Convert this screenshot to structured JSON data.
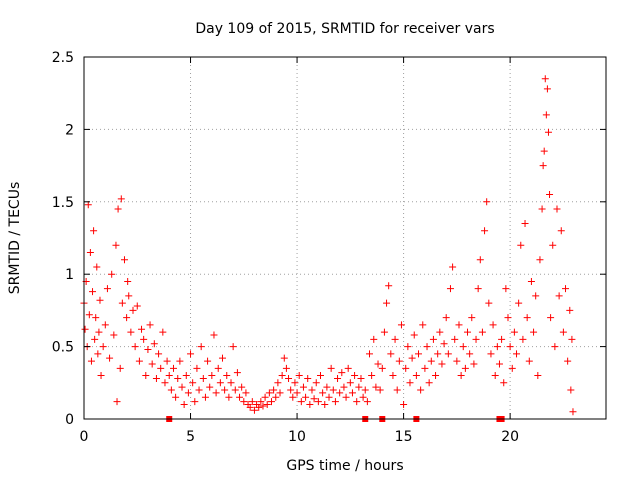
{
  "chart_data": {
    "type": "scatter",
    "title": "Day 109 of 2015, SRMTID for receiver vars",
    "xlabel": "GPS time / hours",
    "ylabel": "SRMTID / TECUs",
    "xlim": [
      0,
      24.5
    ],
    "ylim": [
      0,
      2.5
    ],
    "grid": true,
    "x_ticks": [
      0,
      5,
      10,
      15,
      20
    ],
    "x_tick_labels": [
      "0",
      "5",
      "10",
      "15",
      "20"
    ],
    "y_ticks": [
      0,
      0.5,
      1,
      1.5,
      2,
      2.5
    ],
    "y_tick_labels": [
      "0",
      "0.5",
      "1",
      "1.5",
      "2",
      "2.5"
    ],
    "marker": "plus",
    "color": "#ff0000",
    "series": [
      {
        "name": "SRMTID",
        "points": [
          [
            0.0,
            0.8
          ],
          [
            0.05,
            0.62
          ],
          [
            0.1,
            0.95
          ],
          [
            0.15,
            0.5
          ],
          [
            0.2,
            1.48
          ],
          [
            0.25,
            0.72
          ],
          [
            0.3,
            1.15
          ],
          [
            0.35,
            0.4
          ],
          [
            0.4,
            0.88
          ],
          [
            0.45,
            1.3
          ],
          [
            0.5,
            0.55
          ],
          [
            0.55,
            0.7
          ],
          [
            0.6,
            1.05
          ],
          [
            0.65,
            0.45
          ],
          [
            0.7,
            0.6
          ],
          [
            0.75,
            0.82
          ],
          [
            0.8,
            0.3
          ],
          [
            0.9,
            0.5
          ],
          [
            1.0,
            0.65
          ],
          [
            1.1,
            0.9
          ],
          [
            1.2,
            0.42
          ],
          [
            1.3,
            1.0
          ],
          [
            1.4,
            0.58
          ],
          [
            1.5,
            1.2
          ],
          [
            1.55,
            0.12
          ],
          [
            1.6,
            1.45
          ],
          [
            1.7,
            0.35
          ],
          [
            1.75,
            1.52
          ],
          [
            1.8,
            0.8
          ],
          [
            1.9,
            1.1
          ],
          [
            2.0,
            0.7
          ],
          [
            2.05,
            0.95
          ],
          [
            2.1,
            0.85
          ],
          [
            2.2,
            0.6
          ],
          [
            2.3,
            0.75
          ],
          [
            2.4,
            0.5
          ],
          [
            2.5,
            0.78
          ],
          [
            2.6,
            0.4
          ],
          [
            2.7,
            0.62
          ],
          [
            2.8,
            0.55
          ],
          [
            2.9,
            0.3
          ],
          [
            3.0,
            0.48
          ],
          [
            3.1,
            0.65
          ],
          [
            3.2,
            0.38
          ],
          [
            3.3,
            0.52
          ],
          [
            3.4,
            0.28
          ],
          [
            3.5,
            0.45
          ],
          [
            3.6,
            0.35
          ],
          [
            3.7,
            0.6
          ],
          [
            3.8,
            0.25
          ],
          [
            3.9,
            0.4
          ],
          [
            4.0,
            0.3
          ],
          [
            4.1,
            0.2
          ],
          [
            4.2,
            0.35
          ],
          [
            4.3,
            0.15
          ],
          [
            4.4,
            0.28
          ],
          [
            4.5,
            0.4
          ],
          [
            4.6,
            0.22
          ],
          [
            4.7,
            0.1
          ],
          [
            4.8,
            0.3
          ],
          [
            4.9,
            0.18
          ],
          [
            5.0,
            0.45
          ],
          [
            5.1,
            0.25
          ],
          [
            5.2,
            0.12
          ],
          [
            5.3,
            0.35
          ],
          [
            5.4,
            0.2
          ],
          [
            5.5,
            0.5
          ],
          [
            5.6,
            0.28
          ],
          [
            5.7,
            0.15
          ],
          [
            5.8,
            0.4
          ],
          [
            5.9,
            0.22
          ],
          [
            6.0,
            0.3
          ],
          [
            6.1,
            0.58
          ],
          [
            6.2,
            0.18
          ],
          [
            6.3,
            0.35
          ],
          [
            6.4,
            0.25
          ],
          [
            6.5,
            0.42
          ],
          [
            6.6,
            0.2
          ],
          [
            6.7,
            0.3
          ],
          [
            6.8,
            0.15
          ],
          [
            6.9,
            0.25
          ],
          [
            7.0,
            0.5
          ],
          [
            7.1,
            0.2
          ],
          [
            7.2,
            0.32
          ],
          [
            7.3,
            0.15
          ],
          [
            7.4,
            0.22
          ],
          [
            7.5,
            0.12
          ],
          [
            7.6,
            0.18
          ],
          [
            7.7,
            0.1
          ],
          [
            7.8,
            0.08
          ],
          [
            7.9,
            0.12
          ],
          [
            8.0,
            0.06
          ],
          [
            8.1,
            0.1
          ],
          [
            8.2,
            0.08
          ],
          [
            8.3,
            0.12
          ],
          [
            8.4,
            0.09
          ],
          [
            8.5,
            0.15
          ],
          [
            8.6,
            0.1
          ],
          [
            8.7,
            0.18
          ],
          [
            8.8,
            0.12
          ],
          [
            8.9,
            0.2
          ],
          [
            9.0,
            0.15
          ],
          [
            9.1,
            0.25
          ],
          [
            9.2,
            0.18
          ],
          [
            9.3,
            0.3
          ],
          [
            9.4,
            0.42
          ],
          [
            9.5,
            0.35
          ],
          [
            9.6,
            0.28
          ],
          [
            9.7,
            0.2
          ],
          [
            9.8,
            0.15
          ],
          [
            9.9,
            0.25
          ],
          [
            10.0,
            0.18
          ],
          [
            10.1,
            0.3
          ],
          [
            10.2,
            0.12
          ],
          [
            10.3,
            0.22
          ],
          [
            10.4,
            0.15
          ],
          [
            10.5,
            0.28
          ],
          [
            10.6,
            0.1
          ],
          [
            10.7,
            0.2
          ],
          [
            10.8,
            0.14
          ],
          [
            10.9,
            0.25
          ],
          [
            11.0,
            0.12
          ],
          [
            11.1,
            0.3
          ],
          [
            11.2,
            0.18
          ],
          [
            11.3,
            0.1
          ],
          [
            11.4,
            0.22
          ],
          [
            11.5,
            0.15
          ],
          [
            11.6,
            0.35
          ],
          [
            11.7,
            0.2
          ],
          [
            11.8,
            0.12
          ],
          [
            11.9,
            0.28
          ],
          [
            12.0,
            0.18
          ],
          [
            12.1,
            0.32
          ],
          [
            12.2,
            0.22
          ],
          [
            12.3,
            0.15
          ],
          [
            12.4,
            0.35
          ],
          [
            12.5,
            0.25
          ],
          [
            12.6,
            0.18
          ],
          [
            12.7,
            0.3
          ],
          [
            12.8,
            0.12
          ],
          [
            12.9,
            0.22
          ],
          [
            13.0,
            0.28
          ],
          [
            13.1,
            0.15
          ],
          [
            13.2,
            0.2
          ],
          [
            13.3,
            0.12
          ],
          [
            13.4,
            0.45
          ],
          [
            13.5,
            0.3
          ],
          [
            13.6,
            0.55
          ],
          [
            13.7,
            0.22
          ],
          [
            13.8,
            0.38
          ],
          [
            13.9,
            0.2
          ],
          [
            14.0,
            0.35
          ],
          [
            14.1,
            0.6
          ],
          [
            14.2,
            0.8
          ],
          [
            14.3,
            0.92
          ],
          [
            14.4,
            0.45
          ],
          [
            14.5,
            0.3
          ],
          [
            14.6,
            0.55
          ],
          [
            14.7,
            0.2
          ],
          [
            14.8,
            0.4
          ],
          [
            14.9,
            0.65
          ],
          [
            15.0,
            0.1
          ],
          [
            15.1,
            0.35
          ],
          [
            15.2,
            0.5
          ],
          [
            15.3,
            0.25
          ],
          [
            15.4,
            0.42
          ],
          [
            15.5,
            0.58
          ],
          [
            15.6,
            0.3
          ],
          [
            15.7,
            0.45
          ],
          [
            15.8,
            0.2
          ],
          [
            15.9,
            0.65
          ],
          [
            16.0,
            0.35
          ],
          [
            16.1,
            0.5
          ],
          [
            16.2,
            0.25
          ],
          [
            16.3,
            0.4
          ],
          [
            16.4,
            0.55
          ],
          [
            16.5,
            0.3
          ],
          [
            16.6,
            0.45
          ],
          [
            16.7,
            0.6
          ],
          [
            16.8,
            0.38
          ],
          [
            16.9,
            0.52
          ],
          [
            17.0,
            0.7
          ],
          [
            17.1,
            0.45
          ],
          [
            17.2,
            0.9
          ],
          [
            17.3,
            1.05
          ],
          [
            17.4,
            0.55
          ],
          [
            17.5,
            0.4
          ],
          [
            17.6,
            0.65
          ],
          [
            17.7,
            0.3
          ],
          [
            17.8,
            0.5
          ],
          [
            17.9,
            0.35
          ],
          [
            18.0,
            0.6
          ],
          [
            18.1,
            0.45
          ],
          [
            18.2,
            0.7
          ],
          [
            18.3,
            0.38
          ],
          [
            18.4,
            0.55
          ],
          [
            18.5,
            0.9
          ],
          [
            18.6,
            1.1
          ],
          [
            18.7,
            0.6
          ],
          [
            18.8,
            1.3
          ],
          [
            18.9,
            1.5
          ],
          [
            19.0,
            0.8
          ],
          [
            19.1,
            0.45
          ],
          [
            19.2,
            0.65
          ],
          [
            19.3,
            0.3
          ],
          [
            19.4,
            0.5
          ],
          [
            19.5,
            0.38
          ],
          [
            19.6,
            0.55
          ],
          [
            19.7,
            0.25
          ],
          [
            19.8,
            0.9
          ],
          [
            19.9,
            0.7
          ],
          [
            20.0,
            0.5
          ],
          [
            20.1,
            0.35
          ],
          [
            20.2,
            0.6
          ],
          [
            20.3,
            0.45
          ],
          [
            20.4,
            0.8
          ],
          [
            20.5,
            1.2
          ],
          [
            20.6,
            0.55
          ],
          [
            20.7,
            1.35
          ],
          [
            20.8,
            0.7
          ],
          [
            20.9,
            0.4
          ],
          [
            21.0,
            0.95
          ],
          [
            21.1,
            0.6
          ],
          [
            21.2,
            0.85
          ],
          [
            21.3,
            0.3
          ],
          [
            21.4,
            1.1
          ],
          [
            21.5,
            1.45
          ],
          [
            21.55,
            1.75
          ],
          [
            21.6,
            1.85
          ],
          [
            21.65,
            2.35
          ],
          [
            21.7,
            2.1
          ],
          [
            21.75,
            2.28
          ],
          [
            21.8,
            1.98
          ],
          [
            21.85,
            1.55
          ],
          [
            21.9,
            0.7
          ],
          [
            22.0,
            1.2
          ],
          [
            22.1,
            0.5
          ],
          [
            22.2,
            1.45
          ],
          [
            22.3,
            0.85
          ],
          [
            22.4,
            1.3
          ],
          [
            22.5,
            0.6
          ],
          [
            22.6,
            0.9
          ],
          [
            22.7,
            0.4
          ],
          [
            22.8,
            0.75
          ],
          [
            22.85,
            0.2
          ],
          [
            22.9,
            0.55
          ],
          [
            22.95,
            0.05
          ]
        ]
      }
    ],
    "axis_markers_x": [
      4.0,
      13.2,
      14.0,
      15.6,
      19.5,
      19.6
    ]
  }
}
